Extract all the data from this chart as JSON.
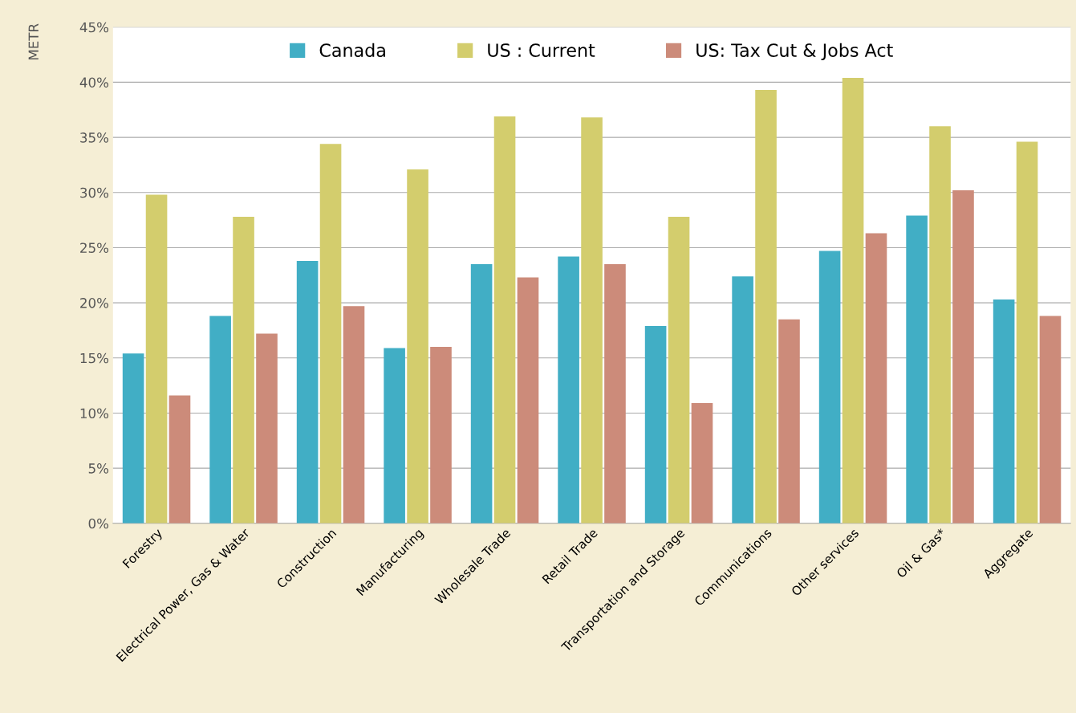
{
  "chart_data": {
    "type": "bar",
    "ylabel": "METR",
    "categories": [
      "Forestry",
      "Electrical Power, Gas & Water",
      "Construction",
      "Manufacturing",
      "Wholesale Trade",
      "Retail Trade",
      "Transportation and Storage",
      "Communications",
      "Other services",
      "Oil & Gas*",
      "Aggregate"
    ],
    "series": [
      {
        "name": "Canada",
        "color": "#41aec5",
        "values": [
          15.4,
          18.8,
          23.8,
          15.9,
          23.5,
          24.2,
          17.9,
          22.4,
          24.7,
          27.9,
          20.3
        ]
      },
      {
        "name": "US : Current",
        "color": "#d3cd6d",
        "values": [
          29.8,
          27.8,
          34.4,
          32.1,
          36.9,
          36.8,
          27.8,
          39.3,
          40.4,
          36.0,
          34.6
        ]
      },
      {
        "name": "US: Tax Cut & Jobs Act",
        "color": "#cc8b7a",
        "values": [
          11.6,
          17.2,
          19.7,
          16.0,
          22.3,
          23.5,
          10.9,
          18.5,
          26.3,
          30.2,
          18.8
        ]
      }
    ],
    "ylim": [
      0,
      45
    ],
    "yticks": [
      {
        "value": 0,
        "label": "0%"
      },
      {
        "value": 5,
        "label": "5%"
      },
      {
        "value": 10,
        "label": "10%"
      },
      {
        "value": 15,
        "label": "15%"
      },
      {
        "value": 20,
        "label": "20%"
      },
      {
        "value": 25,
        "label": "25%"
      },
      {
        "value": 30,
        "label": "30%"
      },
      {
        "value": 35,
        "label": "35%"
      },
      {
        "value": 40,
        "label": "40%"
      },
      {
        "value": 45,
        "label": "45%"
      }
    ],
    "grid": "y",
    "legend": "top"
  }
}
